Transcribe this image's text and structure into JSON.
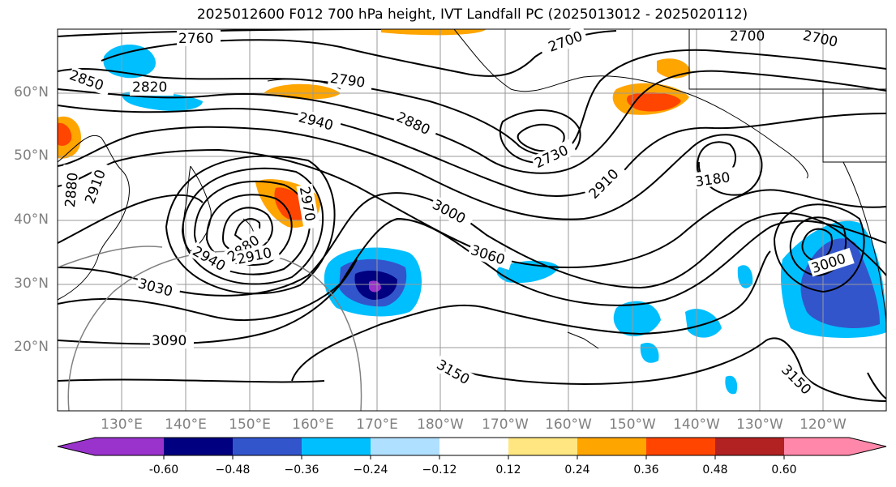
{
  "title": "2025012600 F012 700 hPa height, IVT Landfall PC (2025013012 - 2025020112)",
  "lat_labels": [
    "60°N",
    "50°N",
    "40°N",
    "30°N",
    "20°N"
  ],
  "lon_labels": [
    "130°E",
    "140°E",
    "150°E",
    "160°E",
    "170°E",
    "180°W",
    "170°W",
    "160°W",
    "150°W",
    "140°W",
    "130°W",
    "120°W"
  ],
  "contour_labels": [
    "2760",
    "2700",
    "2700",
    "2700",
    "2850",
    "2820",
    "2790",
    "2940",
    "2880",
    "2730",
    "2910",
    "3180",
    "2880",
    "2910",
    "2970",
    "3000",
    "3060",
    "3000",
    "2940",
    "2880",
    "2910",
    "3030",
    "3090",
    "3150",
    "3150"
  ],
  "colorbar": {
    "ticks": [
      "-0.60",
      "−0.48",
      "−0.36",
      "−0.24",
      "−0.12",
      "0.12",
      "0.24",
      "0.36",
      "0.48",
      "0.60"
    ],
    "colors": [
      "#9933cc",
      "#000080",
      "#3355cc",
      "#00bfff",
      "#b0e0ff",
      "#ffffff",
      "#ffe680",
      "#ffa500",
      "#ff4500",
      "#b22222",
      "#ff88aa"
    ]
  }
}
